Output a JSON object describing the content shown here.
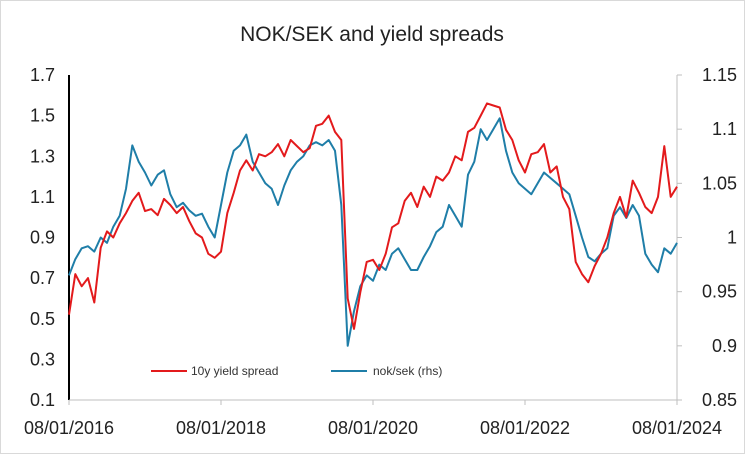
{
  "chart_data": {
    "type": "line",
    "title": "NOK/SEK and yield spreads",
    "xlabel": "",
    "ylabel": "",
    "x_ticks": [
      "08/01/2016",
      "08/01/2018",
      "08/01/2020",
      "08/01/2022",
      "08/01/2024"
    ],
    "y_left": {
      "lim": [
        0.1,
        1.7
      ],
      "ticks": [
        "0.1",
        "0.3",
        "0.5",
        "0.7",
        "0.9",
        "1.1",
        "1.3",
        "1.5",
        "1.7"
      ]
    },
    "y_right": {
      "lim": [
        0.85,
        1.15
      ],
      "ticks": [
        "0.85",
        "0.9",
        "0.95",
        "1",
        "1.05",
        "1.1",
        "1.15"
      ]
    },
    "x": [
      "2016-08",
      "2016-09",
      "2016-10",
      "2016-11",
      "2016-12",
      "2017-01",
      "2017-02",
      "2017-03",
      "2017-04",
      "2017-05",
      "2017-06",
      "2017-07",
      "2017-08",
      "2017-09",
      "2017-10",
      "2017-11",
      "2017-12",
      "2018-01",
      "2018-02",
      "2018-03",
      "2018-04",
      "2018-05",
      "2018-06",
      "2018-07",
      "2018-08",
      "2018-09",
      "2018-10",
      "2018-11",
      "2018-12",
      "2019-01",
      "2019-02",
      "2019-03",
      "2019-04",
      "2019-05",
      "2019-06",
      "2019-07",
      "2019-08",
      "2019-09",
      "2019-10",
      "2019-11",
      "2019-12",
      "2020-01",
      "2020-02",
      "2020-03",
      "2020-04",
      "2020-05",
      "2020-06",
      "2020-07",
      "2020-08",
      "2020-09",
      "2020-10",
      "2020-11",
      "2020-12",
      "2021-01",
      "2021-02",
      "2021-03",
      "2021-04",
      "2021-05",
      "2021-06",
      "2021-07",
      "2021-08",
      "2021-09",
      "2021-10",
      "2021-11",
      "2021-12",
      "2022-01",
      "2022-02",
      "2022-03",
      "2022-04",
      "2022-05",
      "2022-06",
      "2022-07",
      "2022-08",
      "2022-09",
      "2022-10",
      "2022-11",
      "2022-12",
      "2023-01",
      "2023-02",
      "2023-03",
      "2023-04",
      "2023-05",
      "2023-06",
      "2023-07",
      "2023-08",
      "2023-09",
      "2023-10",
      "2023-11",
      "2023-12",
      "2024-01",
      "2024-02",
      "2024-03",
      "2024-04",
      "2024-05",
      "2024-06",
      "2024-07",
      "2024-08"
    ],
    "series": [
      {
        "name": "10y yield spread",
        "axis": "left",
        "color": "#e31a1c",
        "values": [
          0.52,
          0.72,
          0.66,
          0.7,
          0.58,
          0.85,
          0.93,
          0.9,
          0.97,
          1.02,
          1.08,
          1.12,
          1.03,
          1.04,
          1.01,
          1.09,
          1.06,
          1.02,
          1.05,
          0.98,
          0.92,
          0.9,
          0.82,
          0.8,
          0.83,
          1.02,
          1.12,
          1.23,
          1.28,
          1.23,
          1.31,
          1.3,
          1.32,
          1.36,
          1.3,
          1.38,
          1.35,
          1.32,
          1.34,
          1.45,
          1.46,
          1.5,
          1.42,
          1.38,
          0.6,
          0.45,
          0.63,
          0.78,
          0.79,
          0.74,
          0.82,
          0.95,
          0.97,
          1.08,
          1.12,
          1.05,
          1.15,
          1.1,
          1.2,
          1.18,
          1.22,
          1.3,
          1.28,
          1.42,
          1.44,
          1.5,
          1.56,
          1.55,
          1.54,
          1.43,
          1.38,
          1.28,
          1.22,
          1.31,
          1.32,
          1.36,
          1.22,
          1.25,
          1.1,
          1.04,
          0.78,
          0.72,
          0.68,
          0.76,
          0.82,
          0.9,
          1.02,
          1.1,
          1.0,
          1.18,
          1.12,
          1.05,
          1.02,
          1.1,
          1.35,
          1.1,
          1.15
        ]
      },
      {
        "name": "nok/sek (rhs)",
        "axis": "right",
        "color": "#1f7ea8",
        "values": [
          0.965,
          0.98,
          0.99,
          0.992,
          0.987,
          1.0,
          0.995,
          1.01,
          1.02,
          1.045,
          1.085,
          1.07,
          1.06,
          1.048,
          1.058,
          1.062,
          1.04,
          1.028,
          1.032,
          1.025,
          1.02,
          1.022,
          1.01,
          1.0,
          1.03,
          1.06,
          1.08,
          1.085,
          1.095,
          1.07,
          1.06,
          1.05,
          1.045,
          1.03,
          1.048,
          1.062,
          1.07,
          1.075,
          1.085,
          1.088,
          1.085,
          1.09,
          1.08,
          1.03,
          0.9,
          0.932,
          0.955,
          0.965,
          0.96,
          0.975,
          0.97,
          0.985,
          0.99,
          0.98,
          0.97,
          0.97,
          0.982,
          0.992,
          1.005,
          1.01,
          1.03,
          1.02,
          1.01,
          1.058,
          1.07,
          1.1,
          1.09,
          1.1,
          1.11,
          1.08,
          1.06,
          1.05,
          1.045,
          1.04,
          1.05,
          1.06,
          1.055,
          1.05,
          1.045,
          1.04,
          1.02,
          1.0,
          0.982,
          0.978,
          0.985,
          0.99,
          1.02,
          1.028,
          1.018,
          1.03,
          1.02,
          0.985,
          0.975,
          0.968,
          0.99,
          0.985,
          0.995
        ]
      }
    ],
    "legend": {
      "placement": "bottom-center"
    },
    "grid": false
  }
}
